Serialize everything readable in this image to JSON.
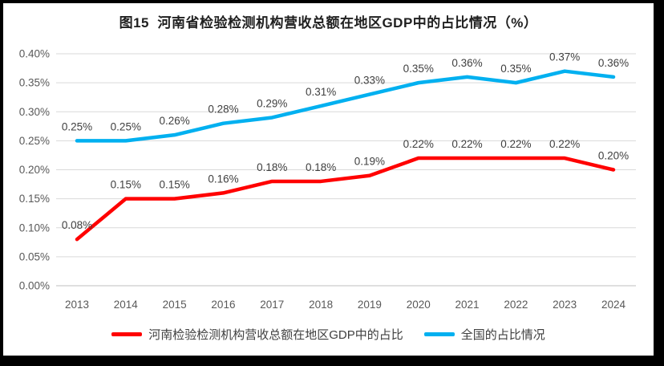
{
  "chart_data": {
    "type": "line",
    "title": "图15  河南省检验检测机构营收总额在地区GDP中的占比情况（%）",
    "title_color": "#1F1F1F",
    "categories": [
      "2013",
      "2014",
      "2015",
      "2016",
      "2017",
      "2018",
      "2019",
      "2020",
      "2021",
      "2022",
      "2023",
      "2024"
    ],
    "series": [
      {
        "name": "河南检验检测机构营收总额在地区GDP中的占比",
        "color": "#FF0000",
        "values": [
          0.08,
          0.15,
          0.15,
          0.16,
          0.18,
          0.18,
          0.19,
          0.22,
          0.22,
          0.22,
          0.22,
          0.2
        ],
        "labels": [
          "0.08%",
          "0.15%",
          "0.15%",
          "0.16%",
          "0.18%",
          "0.18%",
          "0.19%",
          "0.22%",
          "0.22%",
          "0.22%",
          "0.22%",
          "0.20%"
        ]
      },
      {
        "name": "全国的占比情况",
        "color": "#00B0F0",
        "values": [
          0.25,
          0.25,
          0.26,
          0.28,
          0.29,
          0.31,
          0.33,
          0.35,
          0.36,
          0.35,
          0.37,
          0.36
        ],
        "labels": [
          "0.25%",
          "0.25%",
          "0.26%",
          "0.28%",
          "0.29%",
          "0.31%",
          "0.33%",
          "0.35%",
          "0.36%",
          "0.35%",
          "0.37%",
          "0.36%"
        ]
      }
    ],
    "xlabel": "",
    "ylabel": "",
    "ylim": [
      0,
      0.4
    ],
    "ytick_values": [
      0,
      0.05,
      0.1,
      0.15,
      0.2,
      0.25,
      0.3,
      0.35,
      0.4
    ],
    "yticks": [
      "0.00%",
      "0.05%",
      "0.10%",
      "0.15%",
      "0.20%",
      "0.25%",
      "0.30%",
      "0.35%",
      "0.40%"
    ],
    "grid": "horizontal",
    "grid_color": "#D9D9D9",
    "axis_line_color": "#BFBFBF",
    "tick_text_color": "#595959",
    "data_label_color": "#3F3F3F",
    "legend_position": "bottom"
  }
}
